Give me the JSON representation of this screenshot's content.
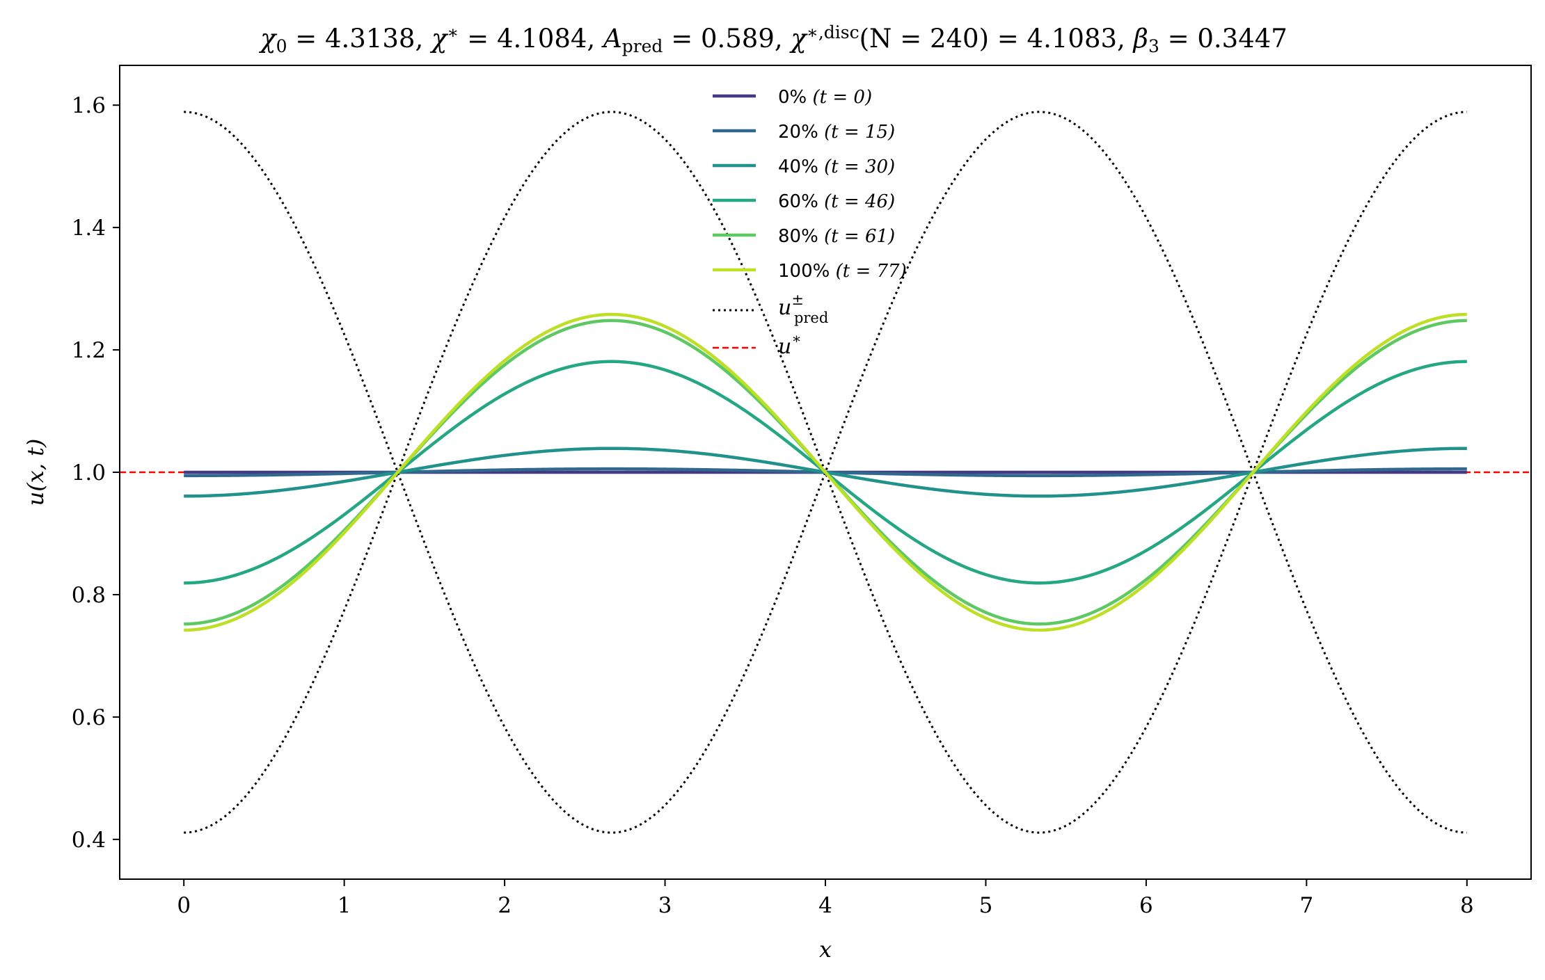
{
  "chart_data": {
    "type": "line",
    "title": {
      "chi0_sym": "χ",
      "chi0_sub": "0",
      "chi0_val": " = 4.3138,  ",
      "chistar_sym": "χ",
      "chistar_sup": "∗",
      "chistar_val": " = 4.1084,  ",
      "a_sym": "A",
      "a_sub": "pred",
      "a_val": " = 0.589,  ",
      "chid_sym": "χ",
      "chid_sup": "∗,disc",
      "chid_paren": "(N = 240)",
      "chid_val": " = 4.1083,  ",
      "beta_sym": "β",
      "beta_sub": "3",
      "beta_val": " = 0.3447"
    },
    "xlabel": "x",
    "ylabel": "u(x, t)",
    "xlim": [
      -0.4,
      8.4
    ],
    "ylim": [
      0.335,
      1.665
    ],
    "xticks": [
      0,
      1,
      2,
      3,
      4,
      5,
      6,
      7,
      8
    ],
    "yticks": [
      0.4,
      0.6,
      0.8,
      1.0,
      1.2,
      1.4,
      1.6
    ],
    "ytick_labels": [
      "0.4",
      "0.6",
      "0.8",
      "1.0",
      "1.2",
      "1.4",
      "1.6"
    ],
    "grid": false,
    "legend_position": "top-center",
    "period": 5.3333,
    "series": [
      {
        "name": "0%",
        "t_label": "(t = 0)",
        "color": "#443983",
        "amplitude": 0.0,
        "style": "solid"
      },
      {
        "name": "20%",
        "t_label": "(t = 15)",
        "color": "#31688e",
        "amplitude": 0.0055,
        "style": "solid"
      },
      {
        "name": "40%",
        "t_label": "(t = 30)",
        "color": "#21918c",
        "amplitude": 0.039,
        "style": "solid"
      },
      {
        "name": "60%",
        "t_label": "(t = 46)",
        "color": "#26a784",
        "amplitude": 0.181,
        "style": "solid"
      },
      {
        "name": "80%",
        "t_label": "(t = 61)",
        "color": "#5ec962",
        "amplitude": 0.248,
        "style": "solid"
      },
      {
        "name": "100%",
        "t_label": "(t = 77)",
        "color": "#bddf26",
        "amplitude": 0.258,
        "style": "solid"
      }
    ],
    "bounds": {
      "sym": "u",
      "sup": "±",
      "sub": "pred",
      "color": "#000000",
      "style": "dotted",
      "center": 1.0,
      "amplitude": 0.589
    },
    "steady": {
      "sym": "u",
      "sup": "∗",
      "color": "#ff0000",
      "style": "dashed",
      "value": 1.0
    }
  }
}
